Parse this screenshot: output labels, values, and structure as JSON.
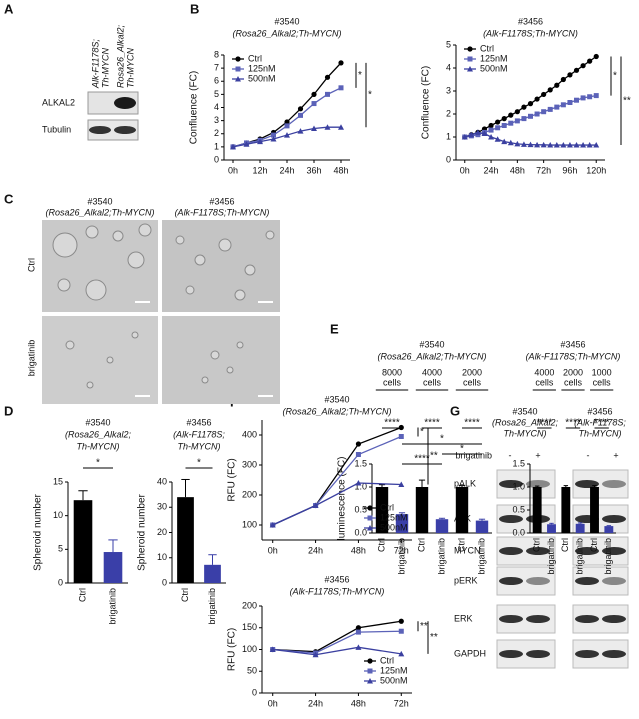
{
  "panel_labels": [
    "A",
    "B",
    "C",
    "D",
    "E",
    "F",
    "G"
  ],
  "blot_a": {
    "lanes": [
      [
        "Alk-F1178S;",
        "Th-MYCN"
      ],
      [
        "Rosa26_Alkal2;",
        "Th-MYCN"
      ]
    ],
    "rows": [
      "ALKAL2",
      "Tubulin"
    ]
  },
  "micrographs": {
    "columns": [
      [
        "#3540",
        "(Rosa26_Alkal2;Th-MYCN)"
      ],
      [
        "#3456",
        "(Alk-F1178S;Th-MYCN)"
      ]
    ],
    "rows": [
      "Ctrl",
      "brigatinib"
    ]
  },
  "blot_g": {
    "columns": [
      [
        "#3540",
        "(Rosa26_Alkal2;",
        "Th-MYCN)"
      ],
      [
        "#3456",
        "(Alk-F1178S;",
        "Th-MYCN)"
      ]
    ],
    "treatment": "brigatinib",
    "lanes": [
      "-",
      "+",
      "-",
      "+"
    ],
    "rows": [
      "pALK",
      "ALK",
      "MYCN",
      "pERK",
      "ERK",
      "GAPDH"
    ]
  },
  "chart_data": [
    {
      "type": "line",
      "title": "#3540",
      "subtitle": [
        "(Rosa26_Alkal2;Th-MYCN)"
      ],
      "y_label": "Confluence (FC)",
      "legend": "upper left",
      "x": [
        0,
        6,
        12,
        18,
        24,
        30,
        36,
        42,
        48
      ],
      "xlim": [
        -4,
        52
      ],
      "xticks": [
        {
          "value": 0,
          "label": "0h"
        },
        {
          "value": 12,
          "label": "12h"
        },
        {
          "value": 24,
          "label": "24h"
        },
        {
          "value": 36,
          "label": "36h"
        },
        {
          "value": 48,
          "label": "48h"
        }
      ],
      "ylim": [
        0,
        8
      ],
      "yticks": [
        0,
        1,
        2,
        3,
        4,
        5,
        6,
        7,
        8
      ],
      "series": [
        {
          "name": "Ctrl",
          "color": "#000000",
          "marker": "circle",
          "values": [
            1.0,
            1.3,
            1.6,
            2.1,
            2.9,
            3.9,
            5.0,
            6.3,
            7.4
          ]
        },
        {
          "name": "125nM",
          "color": "#5b62b8",
          "marker": "square",
          "values": [
            1.0,
            1.3,
            1.5,
            1.9,
            2.6,
            3.4,
            4.3,
            5.0,
            5.5
          ]
        },
        {
          "name": "500nM",
          "color": "#3b40a0",
          "marker": "triangle",
          "values": [
            1.0,
            1.2,
            1.4,
            1.6,
            1.9,
            2.2,
            2.4,
            2.5,
            2.5
          ]
        }
      ],
      "annotations": [
        "*",
        "*"
      ]
    },
    {
      "type": "line",
      "title": "#3456",
      "subtitle": [
        "(Alk-F1178S;Th-MYCN)"
      ],
      "y_label": "Confluence (FC)",
      "legend": "upper left",
      "x": [
        0,
        6,
        12,
        18,
        24,
        30,
        36,
        42,
        48,
        54,
        60,
        66,
        72,
        78,
        84,
        90,
        96,
        102,
        108,
        114,
        120
      ],
      "xlim": [
        -8,
        128
      ],
      "xticks": [
        {
          "value": 0,
          "label": "0h"
        },
        {
          "value": 24,
          "label": "24h"
        },
        {
          "value": 48,
          "label": "48h"
        },
        {
          "value": 72,
          "label": "72h"
        },
        {
          "value": 96,
          "label": "96h"
        },
        {
          "value": 120,
          "label": "120h"
        }
      ],
      "ylim": [
        0,
        5
      ],
      "yticks": [
        0,
        1,
        2,
        3,
        4,
        5
      ],
      "series": [
        {
          "name": "Ctrl",
          "color": "#000000",
          "marker": "circle",
          "values": [
            1.0,
            1.1,
            1.2,
            1.35,
            1.5,
            1.65,
            1.8,
            1.95,
            2.1,
            2.3,
            2.45,
            2.65,
            2.85,
            3.05,
            3.25,
            3.5,
            3.7,
            3.9,
            4.1,
            4.3,
            4.5
          ]
        },
        {
          "name": "125nM",
          "color": "#5b62b8",
          "marker": "square",
          "values": [
            1.0,
            1.05,
            1.1,
            1.2,
            1.3,
            1.4,
            1.5,
            1.6,
            1.7,
            1.8,
            1.9,
            2.0,
            2.1,
            2.2,
            2.3,
            2.4,
            2.5,
            2.6,
            2.7,
            2.75,
            2.8
          ]
        },
        {
          "name": "500nM",
          "color": "#3b40a0",
          "marker": "triangle",
          "values": [
            1.0,
            1.1,
            1.2,
            1.15,
            1.0,
            0.9,
            0.8,
            0.75,
            0.7,
            0.68,
            0.67,
            0.66,
            0.66,
            0.65,
            0.65,
            0.65,
            0.65,
            0.65,
            0.65,
            0.65,
            0.65
          ]
        }
      ],
      "annotations": [
        "*",
        "**"
      ]
    },
    {
      "type": "bar",
      "title": "#3540",
      "subtitle": [
        "(Rosa26_Alkal2;",
        "Th-MYCN)"
      ],
      "y_label": "Spheroid number",
      "categories": [
        "Ctrl",
        "brigatinib"
      ],
      "values": [
        12.3,
        4.6
      ],
      "errors": [
        1.4,
        1.8
      ],
      "colors": [
        "#000000",
        "#3a3fa8"
      ],
      "ylim": [
        0,
        15
      ],
      "yticks": [
        0,
        5,
        10,
        15
      ],
      "annotations": [
        "*"
      ]
    },
    {
      "type": "bar",
      "title": "#3456",
      "subtitle": [
        "(Alk-F1178S;",
        "Th-MYCN)"
      ],
      "y_label": "Spheroid number",
      "categories": [
        "Ctrl",
        "brigatinib"
      ],
      "values": [
        34,
        7.2
      ],
      "errors": [
        7,
        4
      ],
      "colors": [
        "#000000",
        "#3a3fa8"
      ],
      "ylim": [
        0,
        40
      ],
      "yticks": [
        0,
        10,
        20,
        30,
        40
      ],
      "annotations": [
        "*"
      ]
    },
    {
      "type": "bar",
      "title": "#3540",
      "subtitle": [
        "(Rosa26_Alkal2;Th-MYCN)"
      ],
      "y_label": "luminescence (FC)",
      "groups": [
        [
          "8000",
          "cells"
        ],
        [
          "4000",
          "cells"
        ],
        [
          "2000",
          "cells"
        ]
      ],
      "categories": [
        "Ctrl",
        "brigatinib",
        "Ctrl",
        "brigatinib",
        "Ctrl",
        "brigatinib"
      ],
      "values": [
        1.0,
        0.41,
        1.0,
        0.3,
        1.0,
        0.27
      ],
      "errors": [
        0.05,
        0.03,
        0.15,
        0.02,
        0.03,
        0.03
      ],
      "colors": [
        "#000000",
        "#3a3fa8",
        "#000000",
        "#3a3fa8",
        "#000000",
        "#3a3fa8"
      ],
      "ylim": [
        0,
        1.5
      ],
      "yticks": [
        {
          "value": 0,
          "label": "0.0"
        },
        {
          "value": 0.5,
          "label": "0.5"
        },
        {
          "value": 1,
          "label": "1.0"
        },
        {
          "value": 1.5,
          "label": "1.5"
        }
      ],
      "annotations": [
        "****",
        "****",
        "****",
        "*",
        "*",
        "****"
      ]
    },
    {
      "type": "bar",
      "title": "#3456",
      "subtitle": [
        "(Alk-F1178S;Th-MYCN)"
      ],
      "groups": [
        [
          "4000",
          "cells"
        ],
        [
          "2000",
          "cells"
        ],
        [
          "1000",
          "cells"
        ]
      ],
      "categories": [
        "Ctrl",
        "brigatinib",
        "Ctrl",
        "brigatinib",
        "Ctrl",
        "brigatinib"
      ],
      "values": [
        1.0,
        0.19,
        1.0,
        0.2,
        1.0,
        0.15
      ],
      "errors": [
        0.02,
        0.02,
        0.03,
        0.02,
        0.03,
        0.01
      ],
      "colors": [
        "#000000",
        "#3a3fa8",
        "#000000",
        "#3a3fa8",
        "#000000",
        "#3a3fa8"
      ],
      "ylim": [
        0,
        1.5
      ],
      "yticks": [
        {
          "value": 0,
          "label": "0.0"
        },
        {
          "value": 0.5,
          "label": "0.5"
        },
        {
          "value": 1,
          "label": "1.0"
        },
        {
          "value": 1.5,
          "label": "1.5"
        }
      ],
      "annotations": [
        "****",
        "****",
        "****"
      ]
    },
    {
      "type": "line",
      "title": "#3540",
      "subtitle": [
        "(Rosa26_Alkal2;Th-MYCN)"
      ],
      "y_label": "RFU (FC)",
      "legend": "lower right",
      "x": [
        0,
        24,
        48,
        72
      ],
      "xlim": [
        -6,
        78
      ],
      "xticks": [
        {
          "value": 0,
          "label": "0h"
        },
        {
          "value": 24,
          "label": "24h"
        },
        {
          "value": 48,
          "label": "48h"
        },
        {
          "value": 72,
          "label": "72h"
        }
      ],
      "ylim": [
        50,
        450
      ],
      "yticks": [
        100,
        200,
        300,
        400
      ],
      "series": [
        {
          "name": "Ctrl",
          "color": "#000000",
          "marker": "circle",
          "values": [
            100,
            165,
            370,
            425
          ]
        },
        {
          "name": "125nM",
          "color": "#5b62b8",
          "marker": "square",
          "values": [
            100,
            165,
            335,
            395
          ]
        },
        {
          "name": "500nM",
          "color": "#3b40a0",
          "marker": "triangle",
          "values": [
            100,
            165,
            240,
            235
          ]
        }
      ],
      "annotations": [
        "*",
        "**"
      ]
    },
    {
      "type": "line",
      "title": "#3456",
      "subtitle": [
        "(Alk-F1178S;Th-MYCN)"
      ],
      "y_label": "RFU (FC)",
      "legend": "lower right",
      "x": [
        0,
        24,
        48,
        72
      ],
      "xlim": [
        -6,
        78
      ],
      "xticks": [
        {
          "value": 0,
          "label": "0h"
        },
        {
          "value": 24,
          "label": "24h"
        },
        {
          "value": 48,
          "label": "48h"
        },
        {
          "value": 72,
          "label": "72h"
        }
      ],
      "ylim": [
        0,
        200
      ],
      "yticks": [
        0,
        50,
        100,
        150,
        200
      ],
      "series": [
        {
          "name": "Ctrl",
          "color": "#000000",
          "marker": "circle",
          "values": [
            100,
            95,
            150,
            165
          ]
        },
        {
          "name": "125nM",
          "color": "#5b62b8",
          "marker": "square",
          "values": [
            100,
            92,
            140,
            142
          ]
        },
        {
          "name": "500nM",
          "color": "#3b40a0",
          "marker": "triangle",
          "values": [
            100,
            88,
            105,
            90
          ]
        }
      ],
      "annotations": [
        "**",
        "**"
      ]
    }
  ]
}
